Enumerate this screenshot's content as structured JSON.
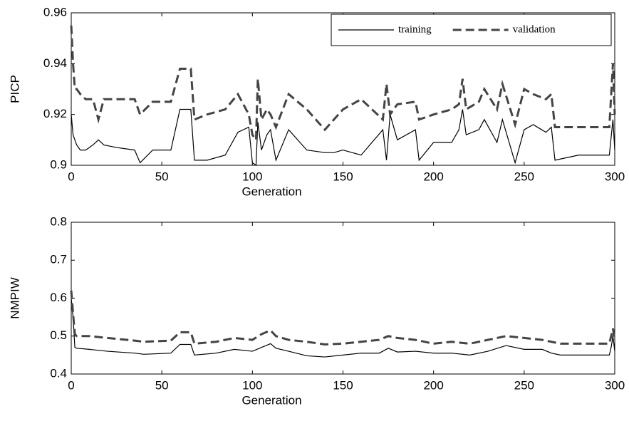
{
  "chart_data": [
    {
      "type": "line",
      "xlabel": "Generation",
      "ylabel": "PICP",
      "xlim": [
        0,
        300
      ],
      "ylim": [
        0.9,
        0.96
      ],
      "xticks": [
        0,
        50,
        100,
        150,
        200,
        250,
        300
      ],
      "yticks": [
        0.9,
        0.92,
        0.94,
        0.96
      ],
      "legend": "upper right",
      "x": [
        0,
        1,
        2,
        3,
        5,
        8,
        12,
        15,
        18,
        25,
        35,
        38,
        45,
        55,
        60,
        66,
        68,
        75,
        85,
        92,
        98,
        100,
        102,
        103,
        105,
        108,
        110,
        113,
        120,
        130,
        140,
        145,
        150,
        160,
        172,
        174,
        176,
        180,
        190,
        192,
        200,
        210,
        214,
        216,
        218,
        225,
        228,
        235,
        238,
        245,
        250,
        255,
        262,
        265,
        267,
        280,
        290,
        297,
        299,
        300
      ],
      "series": [
        {
          "name": "training",
          "color": "#000000",
          "dashed": false,
          "values": [
            0.92,
            0.912,
            0.91,
            0.908,
            0.906,
            0.906,
            0.908,
            0.91,
            0.908,
            0.907,
            0.906,
            0.901,
            0.906,
            0.906,
            0.922,
            0.922,
            0.902,
            0.902,
            0.904,
            0.913,
            0.915,
            0.901,
            0.9,
            0.917,
            0.906,
            0.912,
            0.914,
            0.902,
            0.914,
            0.906,
            0.905,
            0.905,
            0.906,
            0.904,
            0.914,
            0.902,
            0.92,
            0.91,
            0.914,
            0.902,
            0.909,
            0.909,
            0.914,
            0.922,
            0.912,
            0.914,
            0.918,
            0.909,
            0.918,
            0.901,
            0.914,
            0.916,
            0.913,
            0.915,
            0.902,
            0.904,
            0.904,
            0.904,
            0.918,
            0.906
          ]
        },
        {
          "name": "validation",
          "color": "#444444",
          "dashed": true,
          "values": [
            0.955,
            0.94,
            0.93,
            0.93,
            0.928,
            0.926,
            0.926,
            0.918,
            0.926,
            0.926,
            0.926,
            0.92,
            0.925,
            0.925,
            0.938,
            0.938,
            0.918,
            0.92,
            0.922,
            0.928,
            0.92,
            0.912,
            0.91,
            0.934,
            0.918,
            0.922,
            0.92,
            0.915,
            0.928,
            0.922,
            0.914,
            0.918,
            0.922,
            0.926,
            0.918,
            0.932,
            0.92,
            0.924,
            0.925,
            0.918,
            0.92,
            0.922,
            0.924,
            0.934,
            0.922,
            0.925,
            0.93,
            0.922,
            0.932,
            0.916,
            0.93,
            0.928,
            0.926,
            0.928,
            0.915,
            0.915,
            0.915,
            0.915,
            0.94,
            0.92
          ]
        }
      ]
    },
    {
      "type": "line",
      "xlabel": "Generation",
      "ylabel": "NMPIW",
      "xlim": [
        0,
        300
      ],
      "ylim": [
        0.4,
        0.8
      ],
      "xticks": [
        0,
        50,
        100,
        150,
        200,
        250,
        300
      ],
      "yticks": [
        0.4,
        0.5,
        0.6,
        0.7,
        0.8
      ],
      "x": [
        0,
        1,
        2,
        3,
        10,
        20,
        35,
        40,
        55,
        60,
        66,
        68,
        80,
        90,
        100,
        105,
        110,
        113,
        120,
        130,
        140,
        150,
        160,
        170,
        175,
        180,
        190,
        200,
        210,
        220,
        230,
        240,
        250,
        260,
        265,
        270,
        280,
        290,
        297,
        298,
        299,
        300
      ],
      "series": [
        {
          "color": "#000000",
          "dashed": false,
          "values": [
            0.6,
            0.55,
            0.47,
            0.468,
            0.465,
            0.46,
            0.455,
            0.452,
            0.455,
            0.478,
            0.478,
            0.45,
            0.455,
            0.465,
            0.46,
            0.47,
            0.48,
            0.468,
            0.46,
            0.448,
            0.445,
            0.45,
            0.455,
            0.455,
            0.468,
            0.458,
            0.46,
            0.455,
            0.455,
            0.45,
            0.46,
            0.475,
            0.465,
            0.465,
            0.455,
            0.45,
            0.45,
            0.45,
            0.45,
            0.47,
            0.5,
            0.46
          ]
        },
        {
          "color": "#444444",
          "dashed": true,
          "values": [
            0.62,
            0.56,
            0.505,
            0.5,
            0.5,
            0.495,
            0.488,
            0.485,
            0.488,
            0.51,
            0.51,
            0.48,
            0.485,
            0.495,
            0.49,
            0.505,
            0.515,
            0.5,
            0.49,
            0.485,
            0.478,
            0.48,
            0.485,
            0.49,
            0.5,
            0.495,
            0.49,
            0.48,
            0.485,
            0.48,
            0.49,
            0.5,
            0.495,
            0.49,
            0.485,
            0.48,
            0.48,
            0.48,
            0.48,
            0.5,
            0.52,
            0.49
          ]
        }
      ]
    }
  ]
}
